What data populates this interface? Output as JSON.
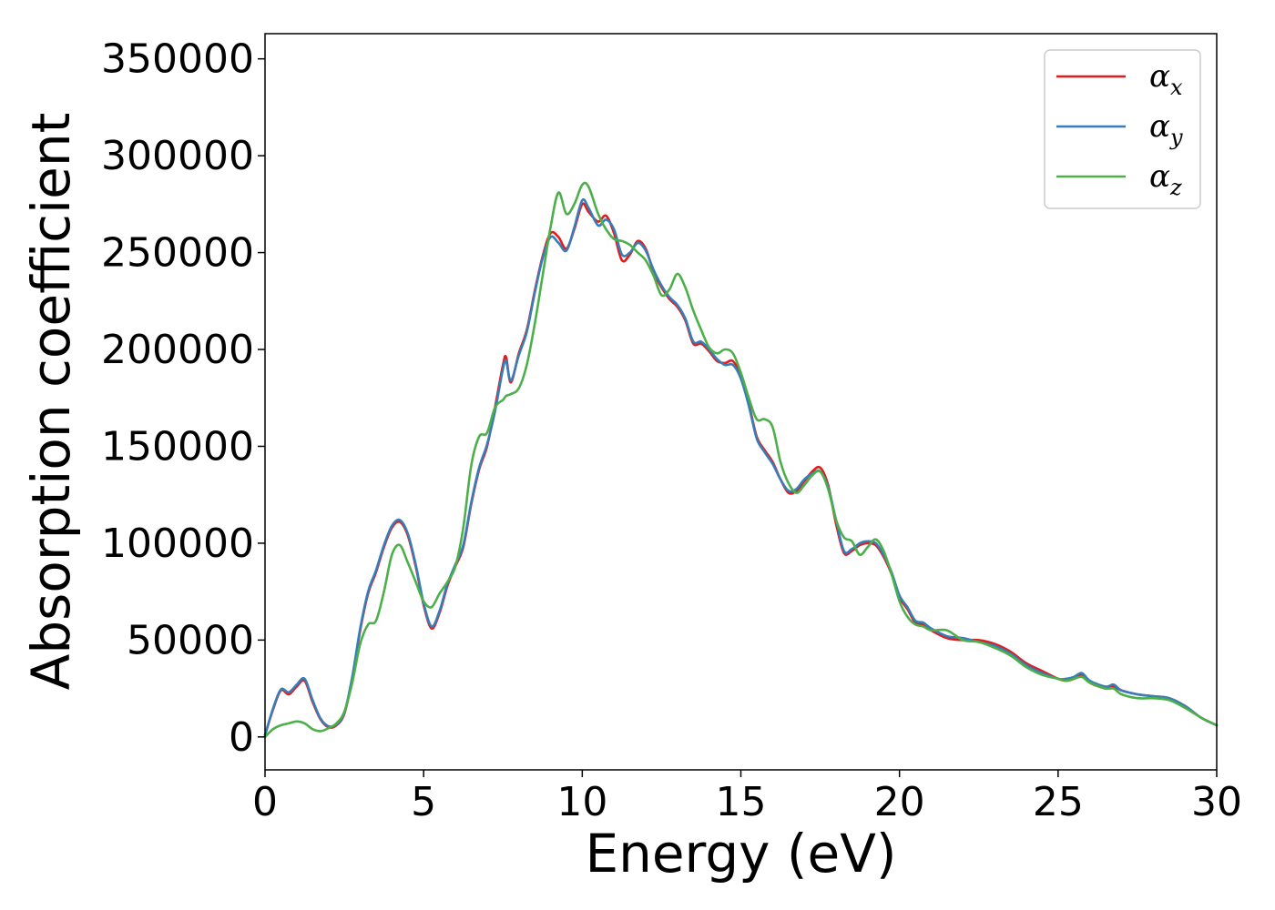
{
  "chart_data": {
    "type": "line",
    "title": "",
    "xlabel": "Energy (eV)",
    "ylabel": "Absorption coefficient",
    "xlim": [
      0,
      30
    ],
    "ylim": [
      -17000,
      363000
    ],
    "xticks": [
      0,
      5,
      10,
      15,
      20,
      25,
      30
    ],
    "xtick_labels": [
      "0",
      "5",
      "10",
      "15",
      "20",
      "25",
      "30"
    ],
    "yticks": [
      0,
      50000,
      100000,
      150000,
      200000,
      250000,
      300000,
      350000
    ],
    "ytick_labels": [
      "0",
      "50000",
      "100000",
      "150000",
      "200000",
      "250000",
      "300000",
      "350000"
    ],
    "grid": false,
    "legend_position": "top-right",
    "series": [
      {
        "name": "α_x",
        "label_base": "α",
        "label_sub": "x",
        "color": "#e41a1c",
        "x": [
          0,
          0.25,
          0.5,
          0.75,
          1.0,
          1.25,
          1.5,
          1.75,
          2.0,
          2.25,
          2.5,
          2.75,
          3.0,
          3.25,
          3.5,
          3.75,
          4.0,
          4.25,
          4.5,
          4.75,
          5.0,
          5.25,
          5.5,
          5.75,
          6.0,
          6.25,
          6.5,
          6.75,
          7.0,
          7.25,
          7.5,
          7.6,
          7.75,
          8.0,
          8.25,
          8.5,
          8.75,
          9.0,
          9.25,
          9.5,
          9.75,
          10.0,
          10.2,
          10.5,
          10.75,
          11.0,
          11.25,
          11.5,
          11.75,
          12.0,
          12.25,
          12.5,
          12.75,
          13.0,
          13.25,
          13.5,
          13.75,
          14.0,
          14.25,
          14.5,
          14.75,
          15.0,
          15.25,
          15.5,
          15.75,
          16.0,
          16.25,
          16.5,
          16.75,
          17.0,
          17.25,
          17.5,
          17.75,
          18.0,
          18.25,
          18.5,
          18.75,
          19.0,
          19.25,
          19.5,
          19.75,
          20.0,
          20.25,
          20.5,
          20.75,
          21.0,
          21.5,
          22.0,
          22.5,
          23.0,
          23.5,
          24.0,
          24.5,
          25.0,
          25.25,
          25.5,
          25.75,
          26.0,
          26.5,
          26.75,
          27.0,
          27.5,
          28.0,
          28.5,
          29.0,
          29.5,
          30.0
        ],
        "y": [
          1000,
          14000,
          24000,
          22000,
          26000,
          29000,
          18000,
          9000,
          5000,
          6000,
          12000,
          30000,
          55000,
          74000,
          85000,
          98000,
          108000,
          111000,
          104000,
          88000,
          68000,
          56000,
          64000,
          78000,
          88000,
          98000,
          120000,
          138000,
          150000,
          170000,
          192000,
          196000,
          183000,
          198000,
          210000,
          230000,
          248000,
          260000,
          258000,
          252000,
          262000,
          275000,
          271000,
          266000,
          269000,
          260000,
          246000,
          249000,
          256000,
          252000,
          240000,
          232000,
          226000,
          222000,
          215000,
          203000,
          203000,
          199000,
          194000,
          193000,
          194000,
          186000,
          172000,
          155000,
          148000,
          142000,
          133000,
          126000,
          127000,
          132000,
          137000,
          139000,
          130000,
          110000,
          95000,
          96000,
          99000,
          100000,
          99000,
          93000,
          84000,
          72000,
          66000,
          59000,
          58000,
          55000,
          51000,
          50000,
          50000,
          48000,
          44000,
          38000,
          34000,
          30000,
          29000,
          30000,
          32000,
          28000,
          25000,
          26000,
          24000,
          22000,
          21000,
          20000,
          16000,
          10000,
          6000
        ]
      },
      {
        "name": "α_y",
        "label_base": "α",
        "label_sub": "y",
        "color": "#377eb8",
        "x": [
          0,
          0.25,
          0.5,
          0.75,
          1.0,
          1.25,
          1.5,
          1.75,
          2.0,
          2.25,
          2.5,
          2.75,
          3.0,
          3.25,
          3.5,
          3.75,
          4.0,
          4.25,
          4.5,
          4.75,
          5.0,
          5.25,
          5.5,
          5.75,
          6.0,
          6.25,
          6.5,
          6.75,
          7.0,
          7.25,
          7.5,
          7.6,
          7.75,
          8.0,
          8.25,
          8.5,
          8.75,
          9.0,
          9.25,
          9.5,
          9.75,
          10.0,
          10.2,
          10.5,
          10.75,
          11.0,
          11.25,
          11.5,
          11.75,
          12.0,
          12.25,
          12.5,
          12.75,
          13.0,
          13.25,
          13.5,
          13.75,
          14.0,
          14.25,
          14.5,
          14.75,
          15.0,
          15.25,
          15.5,
          15.75,
          16.0,
          16.25,
          16.5,
          16.75,
          17.0,
          17.25,
          17.5,
          17.75,
          18.0,
          18.25,
          18.5,
          18.75,
          19.0,
          19.25,
          19.5,
          19.75,
          20.0,
          20.25,
          20.5,
          20.75,
          21.0,
          21.5,
          22.0,
          22.5,
          23.0,
          23.5,
          24.0,
          24.5,
          25.0,
          25.25,
          25.5,
          25.75,
          26.0,
          26.5,
          26.75,
          27.0,
          27.5,
          28.0,
          28.5,
          29.0,
          29.5,
          30.0
        ],
        "y": [
          1000,
          14500,
          24500,
          23000,
          27000,
          30000,
          19000,
          9500,
          5500,
          6500,
          12500,
          31000,
          56000,
          75000,
          86000,
          99000,
          109000,
          112000,
          105000,
          89000,
          69000,
          57000,
          65000,
          79000,
          89000,
          99000,
          121000,
          139000,
          151000,
          168000,
          190000,
          194000,
          184000,
          197000,
          209000,
          229000,
          247000,
          258000,
          255000,
          251000,
          263000,
          277000,
          273000,
          264000,
          267000,
          262000,
          249000,
          250000,
          255000,
          251000,
          241000,
          233000,
          227000,
          223000,
          216000,
          204000,
          204000,
          200000,
          195000,
          192000,
          192000,
          185000,
          171000,
          154000,
          147000,
          141000,
          133000,
          127000,
          128000,
          133000,
          136000,
          137000,
          129000,
          112000,
          96000,
          97000,
          100000,
          101000,
          100000,
          94000,
          85000,
          73000,
          67000,
          60000,
          59000,
          56000,
          52000,
          51000,
          49000,
          47000,
          43000,
          37000,
          33000,
          30000,
          30000,
          31000,
          33000,
          29000,
          26000,
          27000,
          24000,
          22000,
          21000,
          20000,
          16000,
          10000,
          6000
        ]
      },
      {
        "name": "α_z",
        "label_base": "α",
        "label_sub": "z",
        "color": "#4daf4a",
        "x": [
          0,
          0.25,
          0.5,
          0.75,
          1.0,
          1.25,
          1.5,
          1.75,
          2.0,
          2.25,
          2.5,
          2.75,
          3.0,
          3.25,
          3.5,
          3.75,
          4.0,
          4.25,
          4.5,
          4.75,
          5.0,
          5.25,
          5.5,
          5.75,
          6.0,
          6.25,
          6.5,
          6.75,
          7.0,
          7.25,
          7.5,
          7.6,
          7.75,
          8.0,
          8.25,
          8.5,
          8.75,
          9.0,
          9.25,
          9.5,
          9.75,
          10.0,
          10.2,
          10.5,
          10.75,
          11.0,
          11.25,
          11.5,
          11.75,
          12.0,
          12.25,
          12.5,
          12.75,
          13.0,
          13.25,
          13.5,
          13.75,
          14.0,
          14.25,
          14.5,
          14.75,
          15.0,
          15.25,
          15.5,
          15.75,
          16.0,
          16.25,
          16.5,
          16.75,
          17.0,
          17.25,
          17.5,
          17.75,
          18.0,
          18.25,
          18.5,
          18.75,
          19.0,
          19.25,
          19.5,
          19.75,
          20.0,
          20.25,
          20.5,
          20.75,
          21.0,
          21.5,
          22.0,
          22.5,
          23.0,
          23.5,
          24.0,
          24.5,
          25.0,
          25.25,
          25.5,
          25.75,
          26.0,
          26.5,
          26.75,
          27.0,
          27.5,
          28.0,
          28.5,
          29.0,
          29.5,
          30.0
        ],
        "y": [
          0,
          4000,
          6000,
          7000,
          8000,
          7000,
          4000,
          3000,
          4500,
          7000,
          13000,
          28000,
          48000,
          58000,
          60000,
          75000,
          94000,
          99000,
          90000,
          80000,
          70000,
          67000,
          74000,
          80000,
          88000,
          108000,
          140000,
          155000,
          157000,
          170000,
          174000,
          176000,
          177000,
          180000,
          192000,
          213000,
          238000,
          263000,
          281000,
          270000,
          275000,
          285000,
          284000,
          270000,
          262000,
          257000,
          256000,
          254000,
          250000,
          246000,
          238000,
          228000,
          231000,
          239000,
          232000,
          220000,
          210000,
          201000,
          198000,
          200000,
          198000,
          188000,
          175000,
          164000,
          164000,
          160000,
          142000,
          131000,
          126000,
          130000,
          135000,
          137000,
          128000,
          112000,
          103000,
          101000,
          94000,
          98000,
          102000,
          96000,
          84000,
          70000,
          62000,
          58000,
          57000,
          55000,
          55000,
          50000,
          49000,
          46000,
          42000,
          36000,
          32000,
          30000,
          29000,
          30000,
          31000,
          28000,
          25000,
          25000,
          22000,
          20000,
          20000,
          19000,
          15000,
          10000,
          6000
        ]
      }
    ]
  }
}
